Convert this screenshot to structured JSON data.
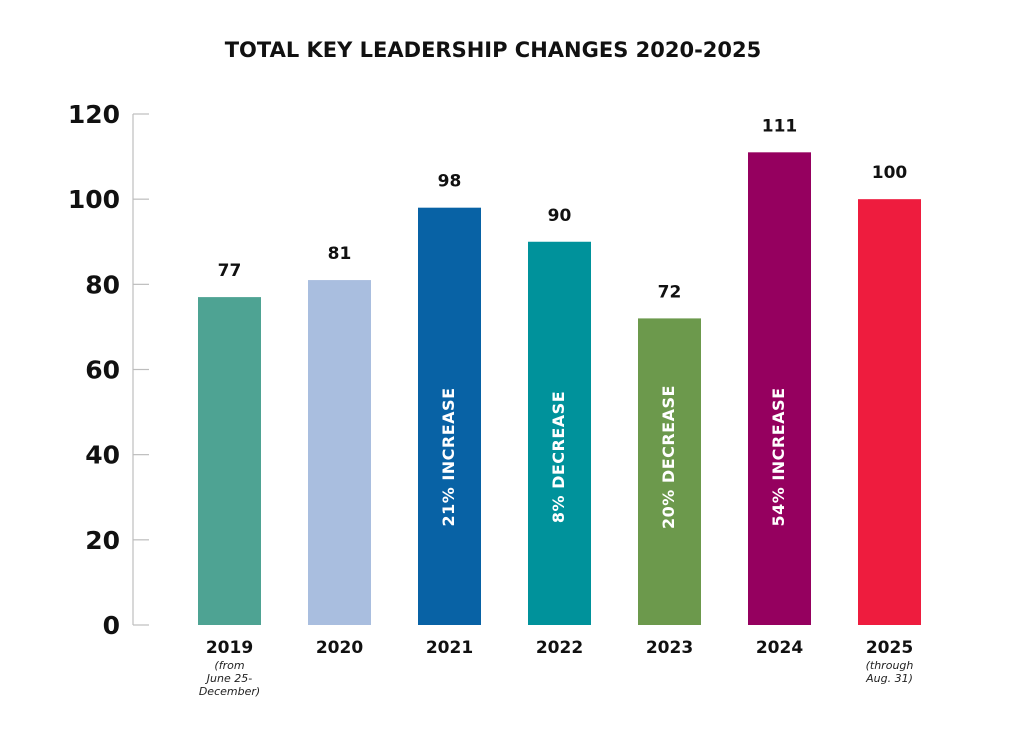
{
  "chart_data": {
    "type": "bar",
    "title": "TOTAL KEY LEADERSHIP CHANGES 2020-2025",
    "xlabel": "",
    "ylabel": "",
    "ylim": [
      0,
      120
    ],
    "yticks": [
      0,
      20,
      40,
      60,
      80,
      100,
      120
    ],
    "categories": [
      "2019",
      "2020",
      "2021",
      "2022",
      "2023",
      "2024",
      "2025"
    ],
    "category_notes": [
      [
        "(from",
        "June 25-",
        "December)"
      ],
      [],
      [],
      [],
      [],
      [],
      [
        "(through",
        "Aug. 31)"
      ]
    ],
    "values": [
      77,
      81,
      98,
      90,
      72,
      111,
      100
    ],
    "colors": [
      "#4ea393",
      "#a9bedf",
      "#0862a5",
      "#00929b",
      "#6c994c",
      "#95005f",
      "#ee1c3e"
    ],
    "annotations": [
      "",
      "",
      "21% INCREASE",
      "8% DECREASE",
      "20% DECREASE",
      "54% INCREASE",
      ""
    ]
  }
}
